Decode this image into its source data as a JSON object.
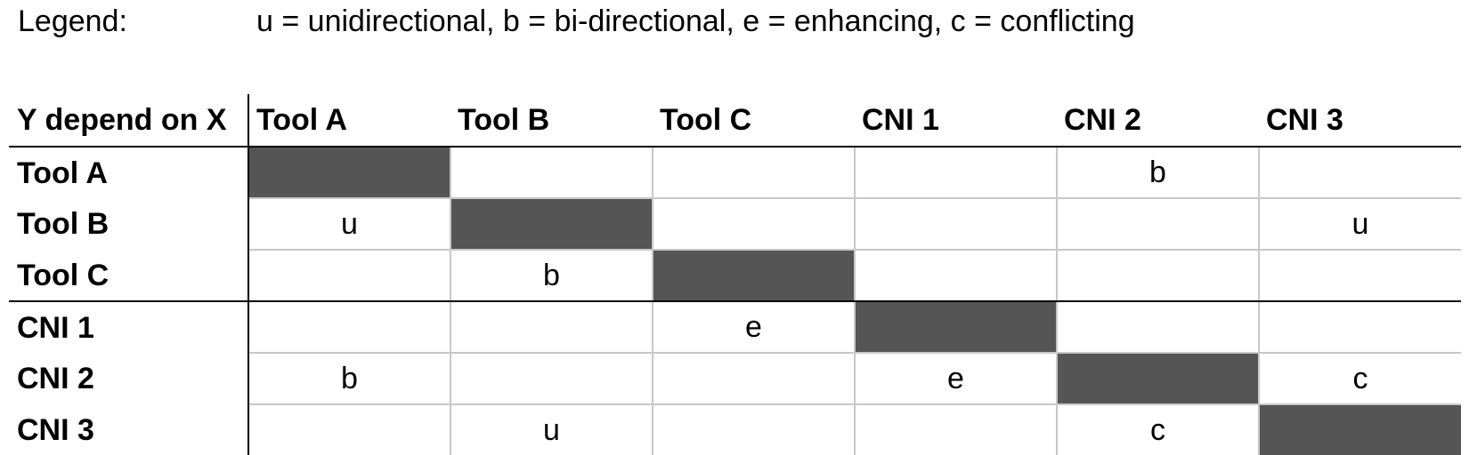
{
  "legend": {
    "label": "Legend:",
    "text": "u = unidirectional, b = bi-directional, e = enhancing, c = conflicting"
  },
  "table": {
    "corner": "Y depend on X",
    "columns": [
      "Tool A",
      "Tool B",
      "Tool C",
      "CNI 1",
      "CNI 2",
      "CNI 3"
    ],
    "rows": [
      {
        "label": "Tool A",
        "cells": [
          "",
          "",
          "",
          "",
          "b",
          ""
        ]
      },
      {
        "label": "Tool B",
        "cells": [
          "u",
          "",
          "",
          "",
          "",
          "u"
        ]
      },
      {
        "label": "Tool C",
        "cells": [
          "",
          "b",
          "",
          "",
          "",
          ""
        ]
      },
      {
        "label": "CNI 1",
        "cells": [
          "",
          "",
          "e",
          "",
          "",
          ""
        ]
      },
      {
        "label": "CNI 2",
        "cells": [
          "b",
          "",
          "",
          "e",
          "",
          "c"
        ]
      },
      {
        "label": "CNI 3",
        "cells": [
          "",
          "u",
          "",
          "",
          "c",
          ""
        ]
      }
    ],
    "diagonal_color": "#555555",
    "grid_color": "#c8c8c8"
  }
}
